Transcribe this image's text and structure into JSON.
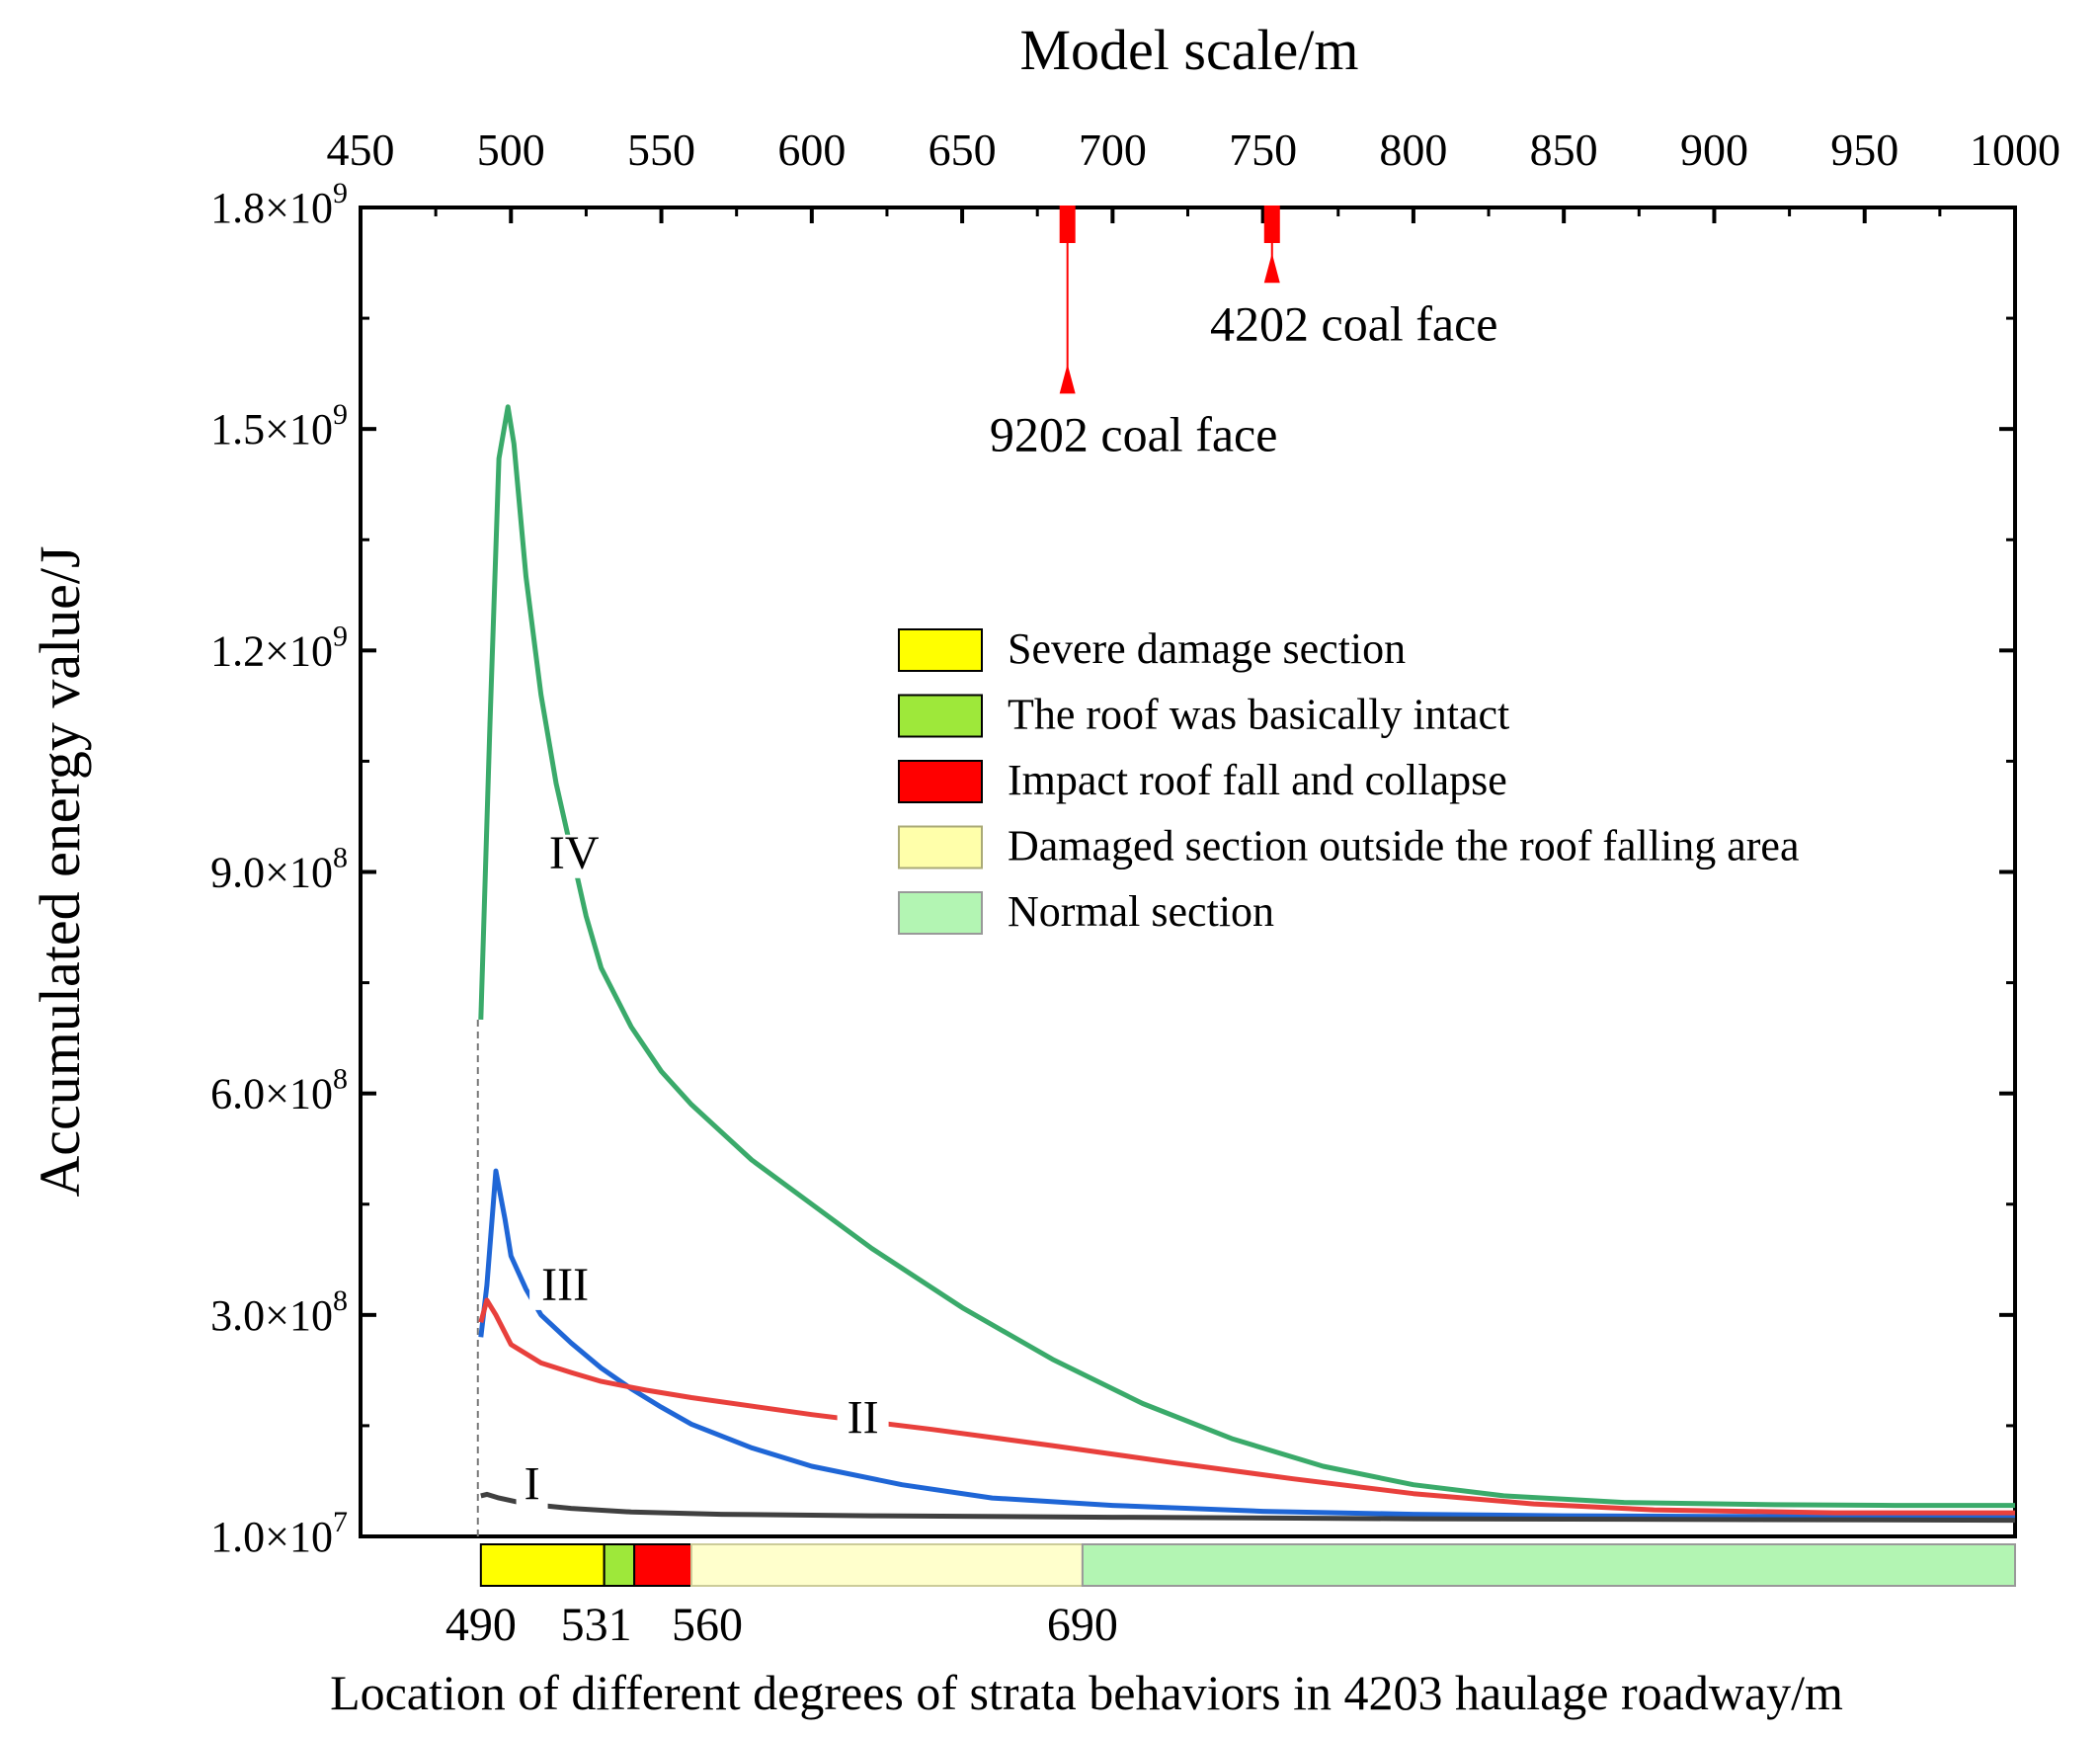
{
  "chart_data": {
    "type": "line",
    "top_axis_title": "Model scale/m",
    "xlabel": "Location of different degrees of strata behaviors in 4203 haulage roadway/m",
    "ylabel": "Accumulated energy value/J",
    "xlim": [
      450,
      1000
    ],
    "ylim": [
      0,
      1800000000
    ],
    "top_ticks": [
      "450",
      "500",
      "550",
      "600",
      "650",
      "700",
      "750",
      "800",
      "850",
      "900",
      "950",
      "1000"
    ],
    "y_ticks": [
      {
        "value": 10000000,
        "mantissa": "1.0×10",
        "exp": "7"
      },
      {
        "value": 300000000,
        "mantissa": "3.0×10",
        "exp": "8"
      },
      {
        "value": 600000000,
        "mantissa": "6.0×10",
        "exp": "8"
      },
      {
        "value": 900000000,
        "mantissa": "9.0×10",
        "exp": "8"
      },
      {
        "value": 1200000000,
        "mantissa": "1.2×10",
        "exp": "9"
      },
      {
        "value": 1500000000,
        "mantissa": "1.5×10",
        "exp": "9"
      },
      {
        "value": 1800000000,
        "mantissa": "1.8×10",
        "exp": "9"
      }
    ],
    "bottom_ticks": [
      {
        "value": 490,
        "label": "490"
      },
      {
        "value": 531,
        "label": "531"
      },
      {
        "value": 560,
        "label": "560"
      },
      {
        "value": 690,
        "label": "690"
      }
    ],
    "bottom_label_offsets": [
      490,
      531,
      560,
      690
    ],
    "sections": [
      {
        "name": "severe",
        "start": 490,
        "end": 531,
        "color": "#ffff00",
        "border": "#000000"
      },
      {
        "name": "intact",
        "start": 531,
        "end": 541,
        "color": "#9ee83a",
        "border": "#000000"
      },
      {
        "name": "impact",
        "start": 541,
        "end": 560,
        "color": "#ff0000",
        "border": "#000000"
      },
      {
        "name": "damaged",
        "start": 560,
        "end": 690,
        "color": "#ffffcc",
        "border": "#cccc99"
      },
      {
        "name": "normal",
        "start": 690,
        "end": 1000,
        "color": "#b3f5b3",
        "border": "#999999"
      }
    ],
    "legend": [
      {
        "label": "Severe damage section",
        "color": "#ffff00",
        "border": "#000000"
      },
      {
        "label": "The roof was basically intact",
        "color": "#9ee83a",
        "border": "#000000"
      },
      {
        "label": "Impact roof fall and collapse",
        "color": "#ff0000",
        "border": "#000000"
      },
      {
        "label": "Damaged section outside the roof falling area",
        "color": "#ffffaa",
        "border": "#aaaa77"
      },
      {
        "label": "Normal section",
        "color": "#b3f5b3",
        "border": "#999999"
      }
    ],
    "markers": [
      {
        "x": 685,
        "label": "9202 coal face",
        "arrow_value": 1580000000
      },
      {
        "x": 753,
        "label": "4202 coal face",
        "arrow_value": 1730000000
      }
    ],
    "series": [
      {
        "name": "IV",
        "color": "#3aaa6a",
        "points": [
          [
            490,
            700000000
          ],
          [
            493,
            1100000000
          ],
          [
            496,
            1460000000
          ],
          [
            499,
            1530000000
          ],
          [
            501,
            1480000000
          ],
          [
            505,
            1300000000
          ],
          [
            510,
            1140000000
          ],
          [
            515,
            1020000000
          ],
          [
            520,
            930000000
          ],
          [
            525,
            840000000
          ],
          [
            530,
            770000000
          ],
          [
            540,
            690000000
          ],
          [
            550,
            630000000
          ],
          [
            560,
            585000000
          ],
          [
            580,
            510000000
          ],
          [
            600,
            450000000
          ],
          [
            620,
            390000000
          ],
          [
            650,
            310000000
          ],
          [
            680,
            240000000
          ],
          [
            710,
            180000000
          ],
          [
            740,
            132000000
          ],
          [
            770,
            95000000
          ],
          [
            800,
            70000000
          ],
          [
            830,
            55000000
          ],
          [
            870,
            46000000
          ],
          [
            920,
            43000000
          ],
          [
            960,
            42000000
          ],
          [
            1000,
            42000000
          ]
        ]
      },
      {
        "name": "III",
        "color": "#1f66d6",
        "points": [
          [
            490,
            270000000
          ],
          [
            492,
            340000000
          ],
          [
            495,
            495000000
          ],
          [
            498,
            430000000
          ],
          [
            500,
            380000000
          ],
          [
            505,
            335000000
          ],
          [
            510,
            300000000
          ],
          [
            520,
            262000000
          ],
          [
            530,
            228000000
          ],
          [
            540,
            200000000
          ],
          [
            550,
            175000000
          ],
          [
            560,
            152000000
          ],
          [
            580,
            120000000
          ],
          [
            600,
            95000000
          ],
          [
            630,
            70000000
          ],
          [
            660,
            52000000
          ],
          [
            700,
            42000000
          ],
          [
            750,
            34000000
          ],
          [
            800,
            30000000
          ],
          [
            850,
            28000000
          ],
          [
            900,
            27000000
          ],
          [
            1000,
            27000000
          ]
        ]
      },
      {
        "name": "II",
        "color": "#e8403c",
        "points": [
          [
            490,
            290000000
          ],
          [
            492,
            320000000
          ],
          [
            495,
            300000000
          ],
          [
            500,
            260000000
          ],
          [
            510,
            235000000
          ],
          [
            520,
            222000000
          ],
          [
            530,
            210000000
          ],
          [
            545,
            198000000
          ],
          [
            560,
            188000000
          ],
          [
            600,
            165000000
          ],
          [
            640,
            145000000
          ],
          [
            680,
            123000000
          ],
          [
            720,
            100000000
          ],
          [
            760,
            78000000
          ],
          [
            800,
            58000000
          ],
          [
            840,
            44000000
          ],
          [
            880,
            36000000
          ],
          [
            940,
            32000000
          ],
          [
            1000,
            32000000
          ]
        ]
      },
      {
        "name": "I",
        "color": "#404040",
        "points": [
          [
            490,
            55000000
          ],
          [
            492,
            57000000
          ],
          [
            496,
            52000000
          ],
          [
            505,
            44000000
          ],
          [
            520,
            38000000
          ],
          [
            540,
            33000000
          ],
          [
            570,
            30000000
          ],
          [
            620,
            28000000
          ],
          [
            700,
            26000000
          ],
          [
            800,
            24000000
          ],
          [
            1000,
            22000000
          ]
        ]
      }
    ],
    "series_labels": [
      {
        "name": "IV",
        "x": 521,
        "y": 905000000
      },
      {
        "name": "III",
        "x": 518,
        "y": 320000000
      },
      {
        "name": "II",
        "x": 617,
        "y": 140000000
      },
      {
        "name": "I",
        "x": 507,
        "y": 50000000
      }
    ]
  }
}
